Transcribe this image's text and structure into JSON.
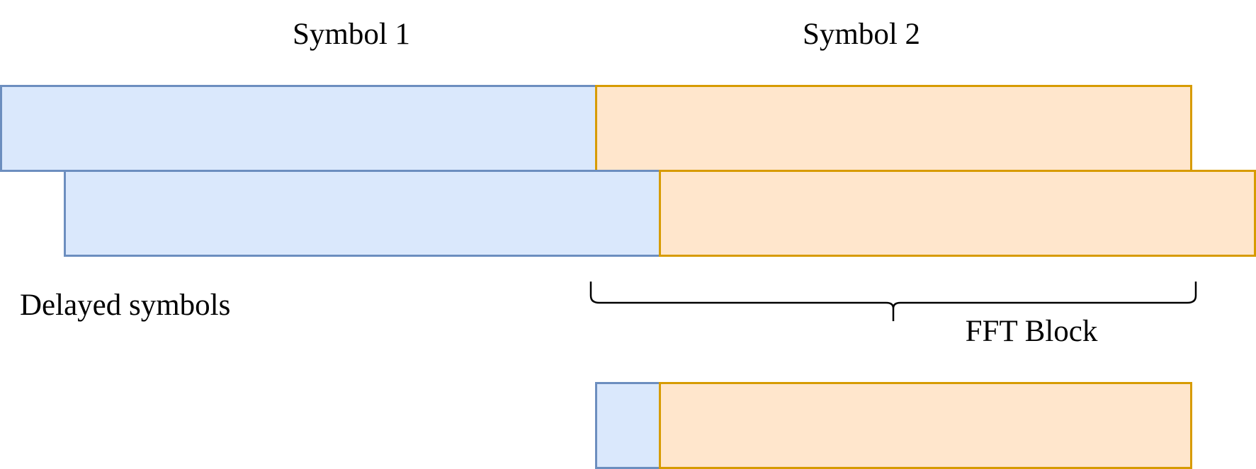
{
  "labels": {
    "symbol_1": "Symbol 1",
    "symbol_2": "Symbol 2",
    "delayed_symbols": "Delayed symbols",
    "fft_block": "FFT Block"
  },
  "colors": {
    "symbol_1_fill": "#dae8fc",
    "symbol_1_stroke": "#6c8ebf",
    "symbol_2_fill": "#ffe6cc",
    "symbol_2_stroke": "#d79b00",
    "brace": "#000000"
  }
}
